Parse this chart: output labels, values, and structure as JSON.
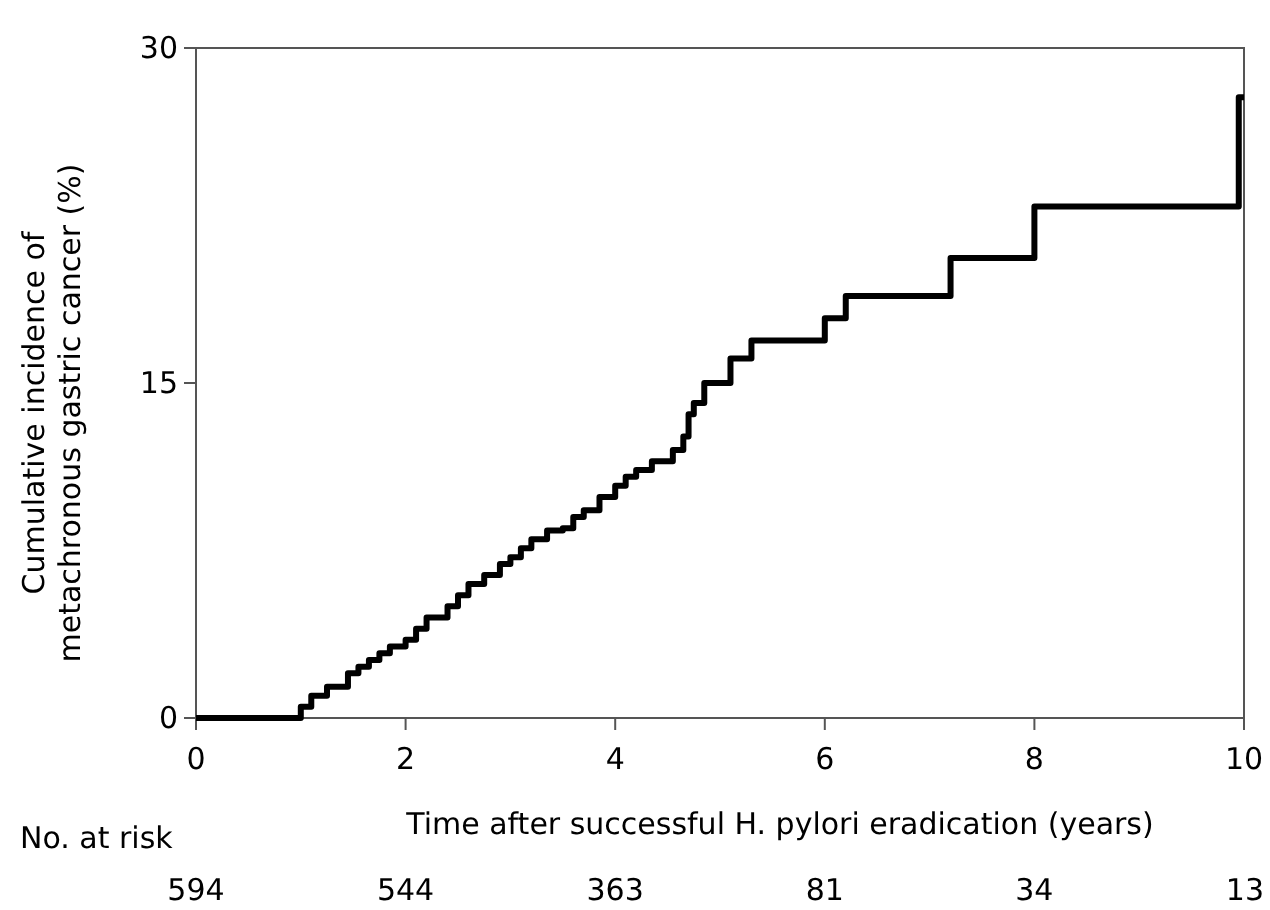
{
  "chart_data": {
    "type": "step",
    "xlabel": "Time after successful H. pylori eradication (years)",
    "ylabel": "Cumulative incidence of metachronous gastric cancer (%)",
    "xlim": [
      0,
      10
    ],
    "ylim": [
      0,
      30
    ],
    "xticks": [
      0,
      2,
      4,
      6,
      8,
      10
    ],
    "yticks": [
      0,
      15,
      30
    ],
    "grid": false,
    "series": [
      {
        "color": "#000000",
        "line_style": "solid",
        "x": [
          0,
          1.0,
          1.1,
          1.25,
          1.45,
          1.55,
          1.65,
          1.75,
          1.85,
          2.0,
          2.1,
          2.2,
          2.4,
          2.5,
          2.6,
          2.75,
          2.9,
          3.0,
          3.1,
          3.2,
          3.35,
          3.5,
          3.6,
          3.7,
          3.85,
          4.0,
          4.1,
          4.2,
          4.35,
          4.55,
          4.65,
          4.7,
          4.75,
          4.85,
          5.1,
          5.3,
          6.0,
          6.2,
          7.2,
          8.0,
          9.95,
          10
        ],
        "values": [
          0,
          0.5,
          1.0,
          1.4,
          2.0,
          2.3,
          2.6,
          2.9,
          3.2,
          3.5,
          4.0,
          4.5,
          5.0,
          5.5,
          6.0,
          6.4,
          6.9,
          7.2,
          7.6,
          8.0,
          8.4,
          8.5,
          9.0,
          9.3,
          9.9,
          10.4,
          10.8,
          11.1,
          11.5,
          12.0,
          12.6,
          13.6,
          14.1,
          15.0,
          16.1,
          16.9,
          17.9,
          18.9,
          20.6,
          22.9,
          27.8,
          27.8
        ]
      }
    ],
    "annotations": [
      "No. at risk",
      "594",
      "544",
      "363",
      "81",
      "34",
      "13"
    ]
  }
}
